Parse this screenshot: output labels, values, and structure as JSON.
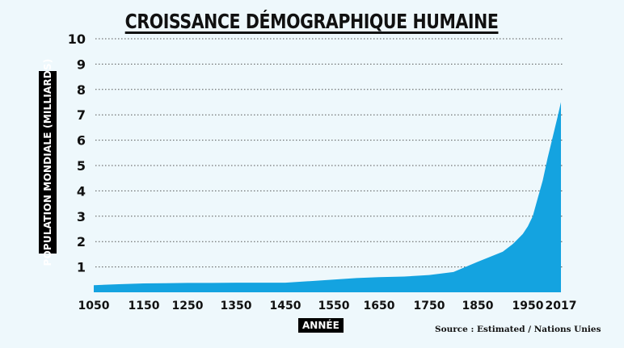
{
  "chart_data": {
    "type": "area",
    "title": "CROISSANCE DÉMOGRAPHIQUE HUMAINE",
    "xlabel": "ANNÉE",
    "ylabel": "POPULATION MONDIALE (MILLIARDS)",
    "source": "Source : Estimated / Nations Unies",
    "x_ticks": [
      1050,
      1150,
      1250,
      1350,
      1450,
      1550,
      1650,
      1750,
      1850,
      1950,
      2017
    ],
    "y_ticks": [
      1,
      2,
      3,
      4,
      5,
      6,
      7,
      8,
      9,
      10
    ],
    "ylim": [
      0,
      10
    ],
    "grid": "horizontal dotted",
    "fill_color": "#14a3e0",
    "series": [
      {
        "x": [
          1050,
          1100,
          1150,
          1200,
          1250,
          1300,
          1350,
          1400,
          1450,
          1500,
          1550,
          1600,
          1650,
          1700,
          1750,
          1800,
          1850,
          1900,
          1920,
          1940,
          1950,
          1960,
          1970,
          1980,
          1990,
          2000,
          2010,
          2017
        ],
        "y": [
          0.28,
          0.32,
          0.35,
          0.36,
          0.37,
          0.37,
          0.38,
          0.38,
          0.38,
          0.44,
          0.5,
          0.56,
          0.6,
          0.62,
          0.68,
          0.8,
          1.2,
          1.6,
          1.9,
          2.3,
          2.6,
          3.0,
          3.7,
          4.4,
          5.3,
          6.1,
          6.9,
          7.5
        ]
      }
    ]
  }
}
